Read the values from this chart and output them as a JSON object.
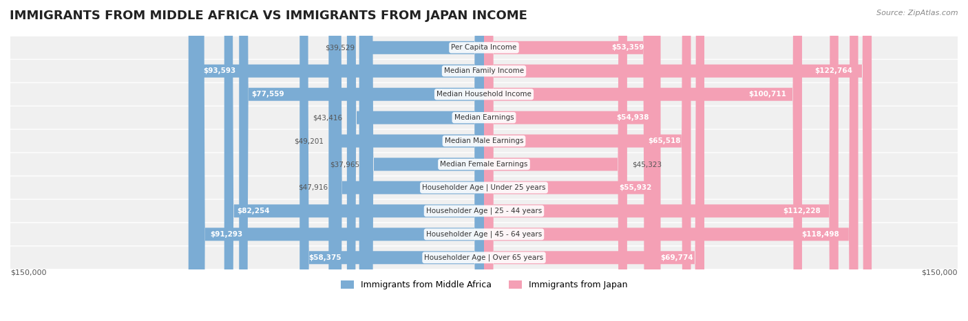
{
  "title": "IMMIGRANTS FROM MIDDLE AFRICA VS IMMIGRANTS FROM JAPAN INCOME",
  "source": "Source: ZipAtlas.com",
  "categories": [
    "Per Capita Income",
    "Median Family Income",
    "Median Household Income",
    "Median Earnings",
    "Median Male Earnings",
    "Median Female Earnings",
    "Householder Age | Under 25 years",
    "Householder Age | 25 - 44 years",
    "Householder Age | 45 - 64 years",
    "Householder Age | Over 65 years"
  ],
  "left_values": [
    39529,
    93593,
    77559,
    43416,
    49201,
    37965,
    47916,
    82254,
    91293,
    58375
  ],
  "right_values": [
    53359,
    122764,
    100711,
    54938,
    65518,
    45323,
    55932,
    112228,
    118498,
    69774
  ],
  "left_labels": [
    "$39,529",
    "$93,593",
    "$77,559",
    "$43,416",
    "$49,201",
    "$37,965",
    "$47,916",
    "$82,254",
    "$91,293",
    "$58,375"
  ],
  "right_labels": [
    "$53,359",
    "$122,764",
    "$100,711",
    "$54,938",
    "$65,518",
    "$45,323",
    "$55,932",
    "$112,228",
    "$118,498",
    "$69,774"
  ],
  "max_value": 150000,
  "left_color": "#7bacd4",
  "right_color": "#f4a0b5",
  "left_color_dark": "#5b8ec4",
  "right_color_dark": "#e8607a",
  "left_legend": "Immigrants from Middle Africa",
  "right_legend": "Immigrants from Japan",
  "bar_height": 0.55,
  "row_bg_color": "#f0f0f0",
  "title_fontsize": 13,
  "label_fontsize": 9,
  "axis_label": "$150,000",
  "background_color": "#ffffff"
}
